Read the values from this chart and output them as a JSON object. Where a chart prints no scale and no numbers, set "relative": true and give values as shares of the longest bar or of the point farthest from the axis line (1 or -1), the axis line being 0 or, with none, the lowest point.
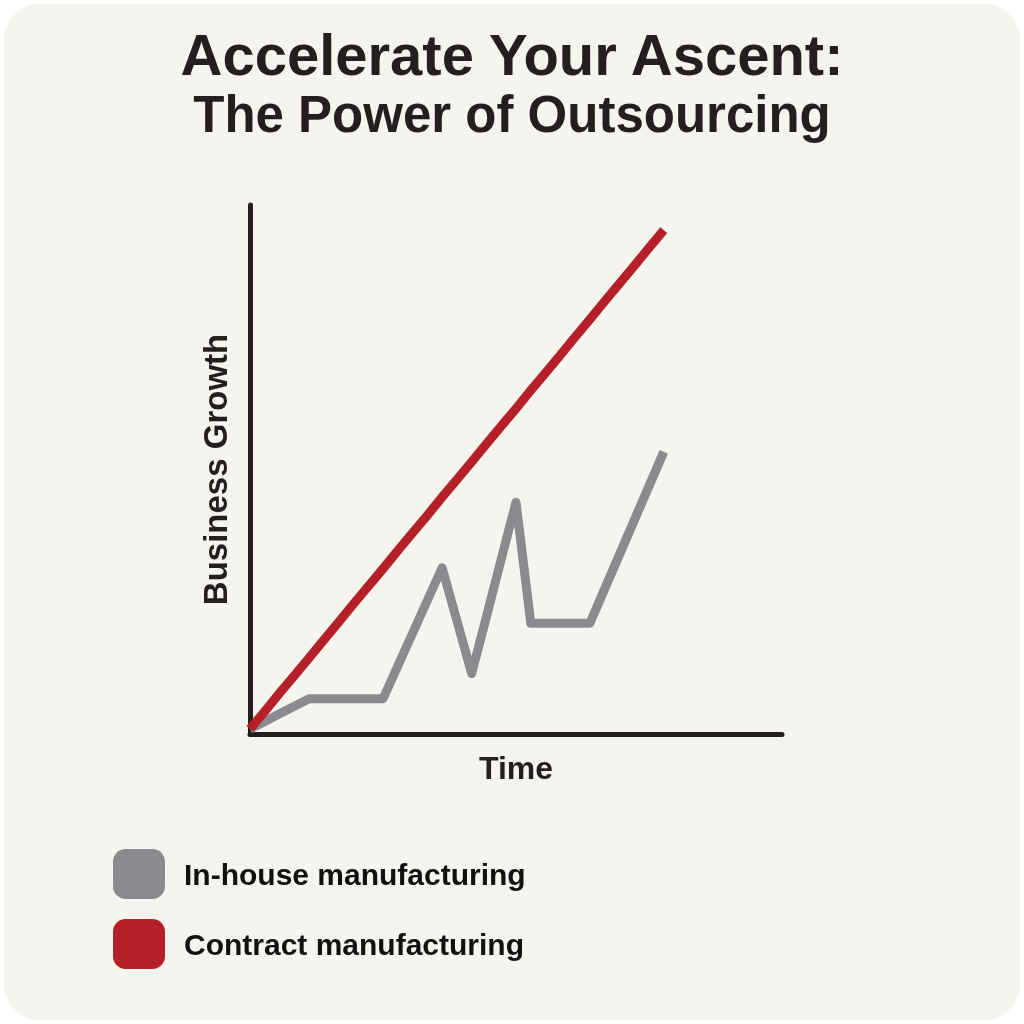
{
  "chart_data": {
    "type": "line",
    "title": "Accelerate Your Ascent:",
    "subtitle": "The Power of Outsourcing",
    "xlabel": "Time",
    "ylabel": "Business Growth",
    "relative": true,
    "categories": [
      null,
      null,
      null,
      null,
      null,
      null,
      null,
      null,
      null,
      null,
      null,
      null,
      null,
      null,
      null,
      null,
      null,
      null,
      null,
      null,
      null,
      null,
      null,
      null,
      null,
      null,
      null,
      null,
      null,
      null,
      null,
      null,
      null,
      null,
      null,
      null,
      null
    ],
    "series": [
      {
        "name": "In-house manufacturing",
        "color": "#8a8b8e",
        "values": [
          0.01,
          0.025,
          0.04,
          0.055,
          0.07,
          0.07,
          0.07,
          0.07,
          0.07,
          0.07,
          0.135,
          0.2,
          0.265,
          0.33,
          0.225,
          0.12,
          0.233,
          0.347,
          0.46,
          0.22,
          0.22,
          0.22,
          0.22,
          0.22,
          0.288,
          0.356,
          0.424,
          0.492,
          0.56,
          null,
          null,
          null,
          null,
          null,
          null,
          null,
          null
        ]
      },
      {
        "name": "Contract manufacturing",
        "color": "#b51f27",
        "values": [
          0.01,
          0.045,
          0.081,
          0.116,
          0.151,
          0.187,
          0.222,
          0.258,
          0.293,
          0.328,
          0.364,
          0.399,
          0.434,
          0.47,
          0.505,
          0.54,
          0.576,
          0.611,
          0.646,
          0.682,
          0.717,
          0.752,
          0.788,
          0.823,
          0.859,
          0.894,
          0.929,
          0.965,
          1.0,
          null,
          null,
          null,
          null,
          null,
          null,
          null,
          null
        ]
      }
    ],
    "grid": false,
    "legend": "bottom left",
    "marker": "none",
    "line_style": "solid"
  }
}
